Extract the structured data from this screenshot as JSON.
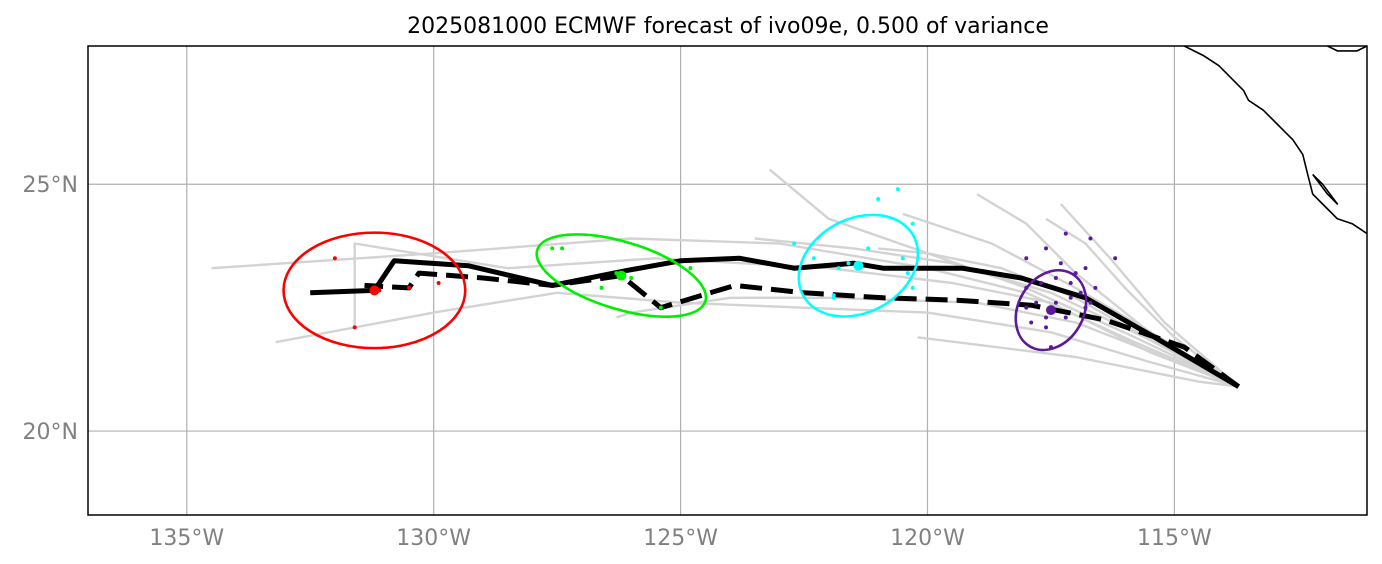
{
  "chart_data": {
    "type": "map",
    "title": "2025081000 ECMWF forecast of ivo09e, 0.500 of variance",
    "xlim": [
      -137,
      -111.1
    ],
    "ylim": [
      18.3,
      27.8
    ],
    "x_ticks": [
      {
        "value": -135,
        "label": "135°W"
      },
      {
        "value": -130,
        "label": "130°W"
      },
      {
        "value": -125,
        "label": "125°W"
      },
      {
        "value": -120,
        "label": "120°W"
      },
      {
        "value": -115,
        "label": "115°W"
      }
    ],
    "y_ticks": [
      {
        "value": 25,
        "label": "25°N"
      },
      {
        "value": 20,
        "label": "20°N"
      }
    ],
    "grid": true,
    "colors": {
      "ensemble": "#d3d3d3",
      "track": "#000000",
      "gridline": "#b0b0b0",
      "tick_label": "#808080",
      "coast": "#000000"
    },
    "coastline": [
      [
        [
          -111.9,
          27.8
        ],
        [
          -111.7,
          27.7
        ],
        [
          -111.3,
          27.7
        ],
        [
          -111.1,
          27.8
        ]
      ],
      [
        [
          -114.8,
          27.8
        ],
        [
          -114.4,
          27.6
        ],
        [
          -114.1,
          27.4
        ],
        [
          -113.9,
          27.2
        ],
        [
          -113.6,
          26.9
        ],
        [
          -113.5,
          26.7
        ],
        [
          -113.2,
          26.5
        ],
        [
          -112.9,
          26.2
        ],
        [
          -112.6,
          25.9
        ],
        [
          -112.4,
          25.6
        ],
        [
          -112.3,
          25.2
        ],
        [
          -112.2,
          24.8
        ],
        [
          -112.0,
          24.6
        ],
        [
          -111.7,
          24.3
        ],
        [
          -111.4,
          24.2
        ],
        [
          -111.1,
          24.0
        ]
      ],
      [
        [
          -112.2,
          25.2
        ],
        [
          -112.0,
          25.0
        ],
        [
          -111.7,
          24.6
        ],
        [
          -111.9,
          24.8
        ],
        [
          -112.2,
          25.2
        ]
      ]
    ],
    "ensemble_tracks": [
      [
        [
          -113.7,
          20.9
        ],
        [
          -115.8,
          21.8
        ],
        [
          -118.0,
          22.8
        ],
        [
          -120.0,
          23.3
        ],
        [
          -123.0,
          23.8
        ],
        [
          -126.0,
          23.9
        ],
        [
          -130.0,
          23.6
        ],
        [
          -134.5,
          23.3
        ]
      ],
      [
        [
          -113.7,
          20.9
        ],
        [
          -115.5,
          21.6
        ],
        [
          -117.5,
          22.6
        ],
        [
          -119.5,
          23.0
        ],
        [
          -122.0,
          23.3
        ],
        [
          -125.5,
          23.5
        ],
        [
          -128.5,
          23.3
        ],
        [
          -131.6,
          23.8
        ],
        [
          -131.6,
          22.1
        ]
      ],
      [
        [
          -113.7,
          20.9
        ],
        [
          -115.5,
          21.4
        ],
        [
          -117.5,
          22.0
        ],
        [
          -120.0,
          22.4
        ],
        [
          -122.5,
          22.5
        ],
        [
          -125.0,
          22.6
        ],
        [
          -127.5,
          22.8
        ],
        [
          -130.0,
          22.4
        ],
        [
          -133.2,
          21.8
        ]
      ],
      [
        [
          -113.7,
          20.9
        ],
        [
          -115.8,
          21.9
        ],
        [
          -118.0,
          22.9
        ],
        [
          -120.0,
          23.6
        ],
        [
          -122.0,
          24.3
        ],
        [
          -123.2,
          25.3
        ]
      ],
      [
        [
          -113.7,
          20.9
        ],
        [
          -115.2,
          21.5
        ],
        [
          -117.0,
          22.2
        ],
        [
          -119.0,
          22.6
        ],
        [
          -122.0,
          22.7
        ],
        [
          -124.0,
          22.7
        ],
        [
          -126.0,
          22.4
        ],
        [
          -126.3,
          22.3
        ]
      ],
      [
        [
          -113.7,
          20.9
        ],
        [
          -114.5,
          21.0
        ],
        [
          -117.0,
          21.5
        ],
        [
          -120.2,
          21.9
        ]
      ],
      [
        [
          -113.7,
          20.9
        ],
        [
          -115.5,
          22.0
        ],
        [
          -117.0,
          23.2
        ],
        [
          -118.0,
          24.2
        ],
        [
          -119.0,
          24.8
        ]
      ],
      [
        [
          -113.7,
          20.9
        ],
        [
          -115.2,
          22.2
        ],
        [
          -116.3,
          23.5
        ],
        [
          -117.3,
          24.6
        ]
      ],
      [
        [
          -113.7,
          20.9
        ],
        [
          -115.3,
          21.9
        ],
        [
          -117.0,
          22.9
        ],
        [
          -118.7,
          23.8
        ],
        [
          -120.5,
          24.4
        ]
      ],
      [
        [
          -113.7,
          20.9
        ],
        [
          -115.6,
          21.9
        ],
        [
          -117.5,
          22.8
        ],
        [
          -119.5,
          23.4
        ],
        [
          -121.5,
          23.7
        ],
        [
          -123.5,
          23.9
        ]
      ],
      [
        [
          -113.7,
          20.9
        ],
        [
          -115.4,
          21.8
        ],
        [
          -117.0,
          22.7
        ],
        [
          -118.5,
          23.3
        ],
        [
          -120.0,
          23.6
        ],
        [
          -121.0,
          23.7
        ]
      ],
      [
        [
          -113.7,
          20.9
        ],
        [
          -115.0,
          21.9
        ],
        [
          -116.0,
          22.9
        ],
        [
          -116.8,
          23.8
        ],
        [
          -117.6,
          24.3
        ]
      ]
    ],
    "ensemble_endpoints": [
      {
        "name": "red",
        "color": "#ff0000",
        "mean": [
          -131.2,
          22.85
        ],
        "ellipse": {
          "rx_deg": 1.84,
          "ry_deg": 1.17,
          "angle": 0
        },
        "points": [
          [
            -132.0,
            23.5
          ],
          [
            -131.6,
            22.1
          ],
          [
            -131.1,
            22.85
          ],
          [
            -130.5,
            22.9
          ],
          [
            -129.9,
            23.0
          ]
        ]
      },
      {
        "name": "green",
        "color": "#00ee00",
        "mean": [
          -126.2,
          23.15
        ],
        "ellipse": {
          "rx_deg": 1.78,
          "ry_deg": 0.68,
          "angle": 17
        },
        "points": [
          [
            -127.6,
            23.7
          ],
          [
            -127.4,
            23.7
          ],
          [
            -126.6,
            22.9
          ],
          [
            -126.3,
            23.2
          ],
          [
            -126.0,
            23.1
          ],
          [
            -125.4,
            22.5
          ],
          [
            -124.8,
            23.3
          ]
        ]
      },
      {
        "name": "cyan",
        "color": "#00ffff",
        "mean": [
          -121.4,
          23.35
        ],
        "ellipse": {
          "rx_deg": 1.27,
          "ry_deg": 0.95,
          "angle": -28
        },
        "points": [
          [
            -122.7,
            23.8
          ],
          [
            -122.3,
            23.5
          ],
          [
            -121.9,
            22.7
          ],
          [
            -121.8,
            23.3
          ],
          [
            -121.6,
            23.4
          ],
          [
            -121.4,
            23.4
          ],
          [
            -121.2,
            23.7
          ],
          [
            -121.0,
            24.7
          ],
          [
            -120.6,
            24.9
          ],
          [
            -120.3,
            24.2
          ],
          [
            -120.5,
            23.5
          ],
          [
            -120.4,
            23.2
          ],
          [
            -121.9,
            22.75
          ],
          [
            -120.3,
            22.9
          ]
        ]
      },
      {
        "name": "purple",
        "color": "#5a1a9a",
        "mean": [
          -117.5,
          22.45
        ],
        "ellipse": {
          "rx_deg": 0.66,
          "ry_deg": 0.85,
          "angle": 30
        },
        "points": [
          [
            -116.7,
            23.9
          ],
          [
            -117.2,
            24.0
          ],
          [
            -117.6,
            23.7
          ],
          [
            -118.0,
            23.5
          ],
          [
            -117.3,
            23.4
          ],
          [
            -116.8,
            23.3
          ],
          [
            -117.0,
            23.2
          ],
          [
            -117.4,
            23.1
          ],
          [
            -117.7,
            23.0
          ],
          [
            -118.0,
            22.9
          ],
          [
            -116.6,
            22.9
          ],
          [
            -117.1,
            22.7
          ],
          [
            -117.4,
            22.6
          ],
          [
            -117.8,
            22.6
          ],
          [
            -118.0,
            22.5
          ],
          [
            -116.9,
            22.8
          ],
          [
            -116.8,
            22.5
          ],
          [
            -117.6,
            22.3
          ],
          [
            -117.9,
            22.2
          ],
          [
            -117.2,
            22.3
          ],
          [
            -117.5,
            21.7
          ],
          [
            -116.2,
            23.5
          ],
          [
            -117.1,
            23.0
          ],
          [
            -117.6,
            22.1
          ],
          [
            -116.7,
            22.6
          ]
        ]
      }
    ],
    "mean_track_solid": [
      [
        -113.7,
        20.9
      ],
      [
        -115.4,
        21.9
      ],
      [
        -116.8,
        22.7
      ],
      [
        -118.1,
        23.1
      ],
      [
        -119.3,
        23.3
      ],
      [
        -120.9,
        23.3
      ],
      [
        -121.5,
        23.4
      ],
      [
        -122.7,
        23.3
      ],
      [
        -123.8,
        23.5
      ],
      [
        -125.0,
        23.45
      ],
      [
        -126.1,
        23.25
      ],
      [
        -127.6,
        22.95
      ],
      [
        -129.3,
        23.35
      ],
      [
        -130.8,
        23.45
      ],
      [
        -131.2,
        22.85
      ],
      [
        -132.5,
        22.8
      ]
    ],
    "mean_track_dashed": [
      [
        -113.7,
        20.9
      ],
      [
        -114.8,
        21.7
      ],
      [
        -116.4,
        22.25
      ],
      [
        -117.9,
        22.55
      ],
      [
        -119.4,
        22.65
      ],
      [
        -120.9,
        22.7
      ],
      [
        -122.5,
        22.8
      ],
      [
        -123.9,
        22.95
      ],
      [
        -124.4,
        22.8
      ],
      [
        -125.4,
        22.5
      ],
      [
        -126.2,
        23.15
      ],
      [
        -127.6,
        22.95
      ],
      [
        -129.0,
        23.1
      ],
      [
        -130.3,
        23.2
      ],
      [
        -130.5,
        22.9
      ],
      [
        -131.4,
        22.95
      ]
    ]
  }
}
